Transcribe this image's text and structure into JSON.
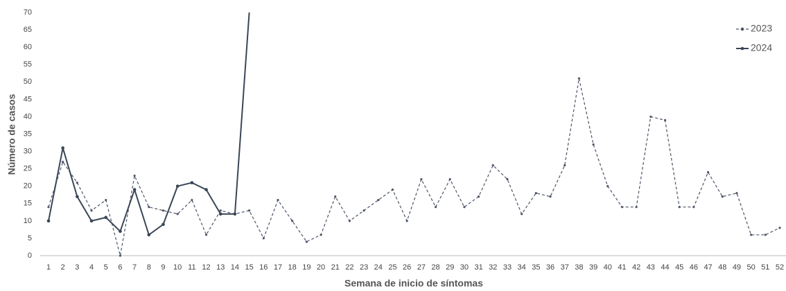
{
  "chart_data": {
    "type": "line",
    "xlabel": "Semana de inicio de síntomas",
    "ylabel": "Número de casos",
    "categories": [
      "1",
      "2",
      "3",
      "4",
      "5",
      "6",
      "7",
      "8",
      "9",
      "10",
      "11",
      "12",
      "13",
      "14",
      "15",
      "16",
      "17",
      "18",
      "19",
      "20",
      "21",
      "22",
      "23",
      "24",
      "25",
      "26",
      "27",
      "28",
      "29",
      "30",
      "31",
      "32",
      "33",
      "34",
      "35",
      "36",
      "37",
      "38",
      "39",
      "40",
      "41",
      "42",
      "43",
      "44",
      "45",
      "46",
      "47",
      "48",
      "49",
      "50",
      "51",
      "52"
    ],
    "series": [
      {
        "name": "2023",
        "color": "#4b5466",
        "dash": true,
        "values": [
          14,
          27,
          21,
          13,
          16,
          0,
          23,
          14,
          13,
          12,
          16,
          6,
          13,
          12,
          13,
          5,
          16,
          10,
          4,
          6,
          17,
          10,
          13,
          16,
          19,
          10,
          22,
          14,
          22,
          14,
          17,
          26,
          22,
          12,
          18,
          17,
          26,
          51,
          32,
          20,
          14,
          14,
          40,
          39,
          14,
          14,
          24,
          17,
          18,
          6,
          6,
          8
        ]
      },
      {
        "name": "2024",
        "color": "#3a4556",
        "dash": false,
        "values": [
          10,
          31,
          17,
          10,
          11,
          7,
          19,
          6,
          9,
          20,
          21,
          19,
          12,
          12,
          70,
          null,
          null,
          null,
          null,
          null,
          null,
          null,
          null,
          null,
          null,
          null,
          null,
          null,
          null,
          null,
          null,
          null,
          null,
          null,
          null,
          null,
          null,
          null,
          null,
          null,
          null,
          null,
          null,
          null,
          null,
          null,
          null,
          null,
          null,
          null,
          null,
          null
        ]
      }
    ],
    "ylim": [
      0,
      70
    ],
    "yticks": [
      0,
      5,
      10,
      15,
      20,
      25,
      30,
      35,
      40,
      45,
      50,
      55,
      60,
      65,
      70
    ],
    "grid": false,
    "legend": "top-right"
  }
}
